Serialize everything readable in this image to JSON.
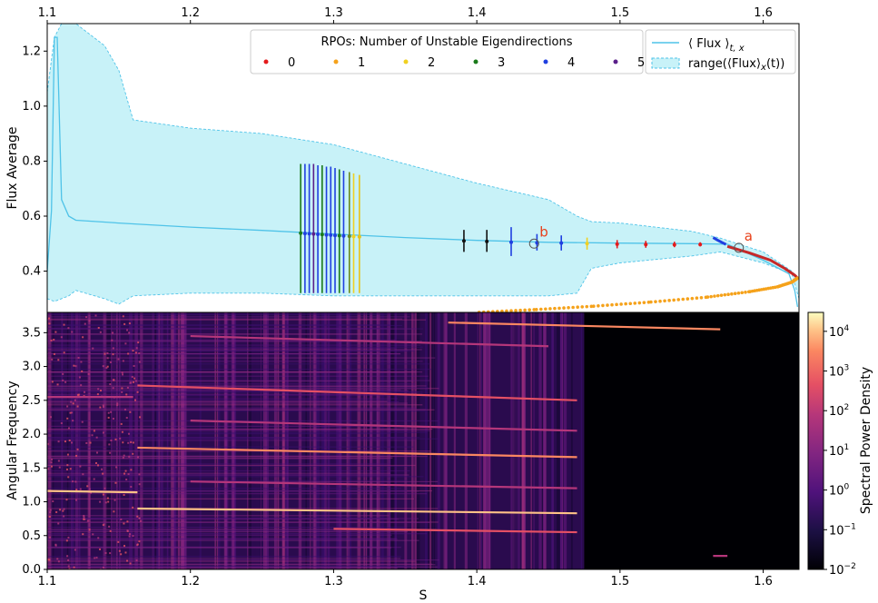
{
  "chart_data": [
    {
      "type": "scatter",
      "panel": "top",
      "ylabel": "Flux Average",
      "xlim": [
        1.1,
        1.625
      ],
      "ylim": [
        0.25,
        1.3
      ],
      "x_ticks": [
        1.1,
        1.2,
        1.3,
        1.4,
        1.5,
        1.6
      ],
      "x_tick_labels": [
        "1.1",
        "1.2",
        "1.3",
        "1.4",
        "1.5",
        "1.6"
      ],
      "x_ticks_position": "top",
      "y_ticks": [
        0.4,
        0.6,
        0.8,
        1.0,
        1.2
      ],
      "y_tick_labels": [
        "0.4",
        "0.6",
        "0.8",
        "1.0",
        "1.2"
      ],
      "legend_rpo": {
        "title": "RPOs: Number of Unstable Eigendirections",
        "placement": "top-center",
        "entries": [
          {
            "label": "0",
            "color": "#e41a1c"
          },
          {
            "label": "1",
            "color": "#f5a21b"
          },
          {
            "label": "2",
            "color": "#f0d020"
          },
          {
            "label": "3",
            "color": "#1a7a1a"
          },
          {
            "label": "4",
            "color": "#1f3fe0"
          },
          {
            "label": "5",
            "color": "#5a1f8a"
          }
        ]
      },
      "legend_flux": {
        "placement": "top-right",
        "line_label": "⟨ Flux ⟩",
        "line_sub": "t, x",
        "range_label_a": "range(⟨Flux⟩",
        "range_sub": "x",
        "range_label_b": "(t))"
      },
      "mean_flux": {
        "color": "#4fc3e8",
        "x": [
          1.1,
          1.103,
          1.105,
          1.107,
          1.11,
          1.115,
          1.12,
          1.15,
          1.2,
          1.25,
          1.3,
          1.35,
          1.4,
          1.45,
          1.5,
          1.55,
          1.575,
          1.6,
          1.618,
          1.622,
          1.624
        ],
        "y": [
          0.4,
          0.62,
          1.25,
          1.25,
          0.66,
          0.6,
          0.585,
          0.575,
          0.56,
          0.548,
          0.535,
          0.522,
          0.512,
          0.505,
          0.502,
          0.5,
          0.498,
          0.44,
          0.39,
          0.33,
          0.27
        ]
      },
      "flux_range": {
        "color": "#c8f2f8",
        "edge_color": "#4fc3e8",
        "x": [
          1.1,
          1.105,
          1.11,
          1.115,
          1.12,
          1.14,
          1.15,
          1.16,
          1.2,
          1.25,
          1.3,
          1.35,
          1.4,
          1.45,
          1.47,
          1.48,
          1.5,
          1.55,
          1.57,
          1.6,
          1.62,
          1.625
        ],
        "upper": [
          1.05,
          1.25,
          1.3,
          1.3,
          1.3,
          1.22,
          1.13,
          0.95,
          0.92,
          0.9,
          0.86,
          0.79,
          0.72,
          0.66,
          0.6,
          0.58,
          0.575,
          0.545,
          0.52,
          0.47,
          0.4,
          0.37
        ],
        "lower": [
          0.3,
          0.29,
          0.3,
          0.31,
          0.33,
          0.3,
          0.28,
          0.31,
          0.32,
          0.32,
          0.31,
          0.31,
          0.31,
          0.31,
          0.32,
          0.41,
          0.43,
          0.455,
          0.47,
          0.43,
          0.39,
          0.3
        ]
      },
      "rpo_branches": [
        {
          "name": "0",
          "color": "#c62828",
          "x": [
            1.575,
            1.59,
            1.605,
            1.615,
            1.622,
            1.624
          ],
          "y": [
            0.49,
            0.467,
            0.44,
            0.41,
            0.385,
            0.375
          ]
        },
        {
          "name": "4",
          "color": "#1f3fe0",
          "x": [
            1.565,
            1.568,
            1.571,
            1.574
          ],
          "y": [
            0.522,
            0.513,
            0.505,
            0.497
          ]
        },
        {
          "name": "1",
          "color": "#f5a21b",
          "x": [
            1.624,
            1.62,
            1.61,
            1.59,
            1.56,
            1.52,
            1.48,
            1.44,
            1.4
          ],
          "y": [
            0.375,
            0.36,
            0.343,
            0.325,
            0.305,
            0.287,
            0.272,
            0.26,
            0.25
          ]
        }
      ],
      "rpo_bars": [
        {
          "x": 1.277,
          "y": 0.538,
          "low": 0.32,
          "high": 0.79,
          "color": "#1a7a1a"
        },
        {
          "x": 1.28,
          "y": 0.537,
          "low": 0.32,
          "high": 0.79,
          "color": "#1f3fe0"
        },
        {
          "x": 1.283,
          "y": 0.536,
          "low": 0.32,
          "high": 0.79,
          "color": "#1f3fe0"
        },
        {
          "x": 1.286,
          "y": 0.535,
          "low": 0.32,
          "high": 0.79,
          "color": "#5a1f8a"
        },
        {
          "x": 1.289,
          "y": 0.534,
          "low": 0.32,
          "high": 0.785,
          "color": "#1f3fe0"
        },
        {
          "x": 1.292,
          "y": 0.533,
          "low": 0.32,
          "high": 0.785,
          "color": "#1a7a1a"
        },
        {
          "x": 1.295,
          "y": 0.532,
          "low": 0.32,
          "high": 0.78,
          "color": "#1f3fe0"
        },
        {
          "x": 1.298,
          "y": 0.531,
          "low": 0.32,
          "high": 0.78,
          "color": "#1f3fe0"
        },
        {
          "x": 1.301,
          "y": 0.53,
          "low": 0.32,
          "high": 0.775,
          "color": "#1f3fe0"
        },
        {
          "x": 1.304,
          "y": 0.529,
          "low": 0.32,
          "high": 0.77,
          "color": "#1a7a1a"
        },
        {
          "x": 1.307,
          "y": 0.528,
          "low": 0.32,
          "high": 0.765,
          "color": "#1f3fe0"
        },
        {
          "x": 1.311,
          "y": 0.527,
          "low": 0.32,
          "high": 0.76,
          "color": "#6a8a1a"
        },
        {
          "x": 1.314,
          "y": 0.526,
          "low": 0.32,
          "high": 0.755,
          "color": "#f0d020"
        },
        {
          "x": 1.318,
          "y": 0.525,
          "low": 0.32,
          "high": 0.75,
          "color": "#e6c21a"
        },
        {
          "x": 1.391,
          "y": 0.51,
          "low": 0.47,
          "high": 0.55,
          "color": "#111111"
        },
        {
          "x": 1.407,
          "y": 0.508,
          "low": 0.47,
          "high": 0.55,
          "color": "#111111"
        },
        {
          "x": 1.424,
          "y": 0.505,
          "low": 0.455,
          "high": 0.56,
          "color": "#1f3fe0"
        },
        {
          "x": 1.442,
          "y": 0.503,
          "low": 0.475,
          "high": 0.535,
          "color": "#1f3fe0"
        },
        {
          "x": 1.459,
          "y": 0.502,
          "low": 0.475,
          "high": 0.53,
          "color": "#1f3fe0"
        },
        {
          "x": 1.477,
          "y": 0.5,
          "low": 0.478,
          "high": 0.522,
          "color": "#f0d020"
        },
        {
          "x": 1.498,
          "y": 0.498,
          "low": 0.483,
          "high": 0.513,
          "color": "#e41a1c"
        },
        {
          "x": 1.518,
          "y": 0.497,
          "low": 0.485,
          "high": 0.51,
          "color": "#e41a1c"
        },
        {
          "x": 1.538,
          "y": 0.496,
          "low": 0.487,
          "high": 0.507,
          "color": "#e41a1c"
        },
        {
          "x": 1.556,
          "y": 0.497,
          "low": 0.49,
          "high": 0.505,
          "color": "#e41a1c"
        }
      ],
      "annotations": [
        {
          "label": "a",
          "x": 1.583,
          "y": 0.485,
          "color": "#e8401a"
        },
        {
          "label": "b",
          "x": 1.44,
          "y": 0.5,
          "color": "#e8401a"
        }
      ]
    },
    {
      "type": "heatmap",
      "panel": "bottom",
      "xlabel": "S",
      "ylabel": "Angular Frequency",
      "xlim": [
        1.1,
        1.625
      ],
      "ylim": [
        0.0,
        3.8
      ],
      "x_ticks": [
        1.1,
        1.2,
        1.3,
        1.4,
        1.5,
        1.6
      ],
      "x_tick_labels": [
        "1.1",
        "1.2",
        "1.3",
        "1.4",
        "1.5",
        "1.6"
      ],
      "y_ticks": [
        0.0,
        0.5,
        1.0,
        1.5,
        2.0,
        2.5,
        3.0,
        3.5
      ],
      "y_tick_labels": [
        "0.0",
        "0.5",
        "1.0",
        "1.5",
        "2.0",
        "2.5",
        "3.0",
        "3.5"
      ],
      "colorbar": {
        "label": "Spectral Power Density",
        "scale": "log",
        "range": [
          0.01,
          30000
        ],
        "tick_values": [
          0.01,
          0.1,
          1,
          10,
          100,
          1000,
          10000
        ],
        "tick_base": [
          "10",
          "10",
          "10",
          "10",
          "10",
          "10",
          "10"
        ],
        "tick_exponents": [
          "−2",
          "−1",
          "0",
          "1",
          "2",
          "3",
          "4"
        ],
        "colormap": "magma"
      },
      "ridges": [
        {
          "x0": 1.1,
          "x1": 1.163,
          "y0": 1.16,
          "y1": 1.14,
          "level": 0.85
        },
        {
          "x0": 1.163,
          "x1": 1.47,
          "y0": 0.9,
          "y1": 0.83,
          "level": 0.9
        },
        {
          "x0": 1.163,
          "x1": 1.47,
          "y0": 1.8,
          "y1": 1.66,
          "level": 0.75
        },
        {
          "x0": 1.163,
          "x1": 1.47,
          "y0": 2.72,
          "y1": 2.5,
          "level": 0.55
        },
        {
          "x0": 1.38,
          "x1": 1.57,
          "y0": 3.65,
          "y1": 3.55,
          "level": 0.7
        },
        {
          "x0": 1.2,
          "x1": 1.45,
          "y0": 3.45,
          "y1": 3.3,
          "level": 0.45
        },
        {
          "x0": 1.2,
          "x1": 1.47,
          "y0": 1.3,
          "y1": 1.2,
          "level": 0.5
        },
        {
          "x0": 1.2,
          "x1": 1.47,
          "y0": 2.2,
          "y1": 2.05,
          "level": 0.45
        },
        {
          "x0": 1.3,
          "x1": 1.47,
          "y0": 0.6,
          "y1": 0.55,
          "level": 0.55
        },
        {
          "x0": 1.1,
          "x1": 1.16,
          "y0": 2.55,
          "y1": 2.55,
          "level": 0.5
        },
        {
          "x0": 1.565,
          "x1": 1.575,
          "y0": 0.2,
          "y1": 0.2,
          "level": 0.35
        }
      ],
      "dark_region_start": 1.475
    }
  ]
}
